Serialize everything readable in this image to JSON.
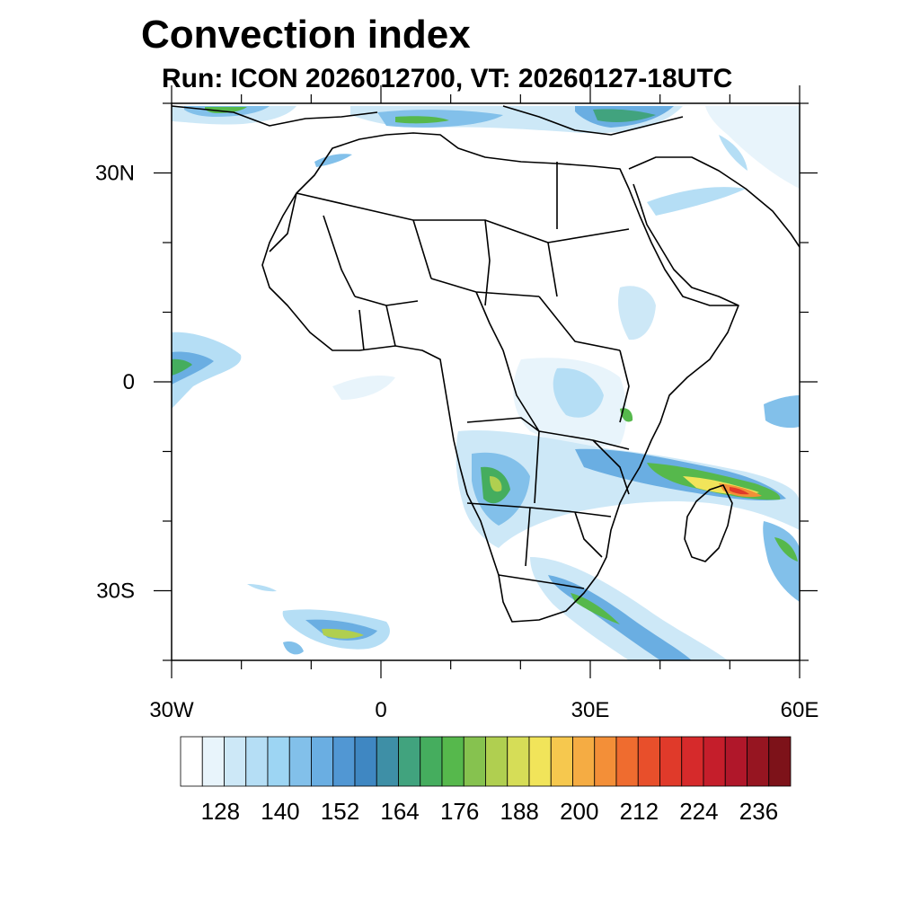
{
  "title": "Convection index",
  "subtitle": "Run: ICON 2026012700,  VT: 20260127-18UTC",
  "map": {
    "lon_range": [
      -30,
      60
    ],
    "lat_range": [
      -40,
      40
    ],
    "lat_labels": [
      {
        "lat": 30,
        "label": "30N"
      },
      {
        "lat": 0,
        "label": "0"
      },
      {
        "lat": -30,
        "label": "30S"
      }
    ],
    "lon_labels": [
      {
        "lon": -30,
        "label": "30W"
      },
      {
        "lon": 0,
        "label": "0"
      },
      {
        "lon": 30,
        "label": "30E"
      },
      {
        "lon": 60,
        "label": "60E"
      }
    ]
  },
  "colorbar": {
    "colors": [
      "#ffffff",
      "#e8f4fb",
      "#cde8f7",
      "#b5def5",
      "#9dd5f3",
      "#82c0ea",
      "#6aaee2",
      "#5197d3",
      "#3f87c2",
      "#3e8fa6",
      "#41a37e",
      "#45ad5e",
      "#56b84c",
      "#86c24f",
      "#b0cf50",
      "#d6dd57",
      "#f1e45a",
      "#f6c84e",
      "#f5ac43",
      "#f38f38",
      "#ef6c2f",
      "#e84f2b",
      "#e03a2a",
      "#d62a2b",
      "#c51e2b",
      "#b0172a",
      "#961521",
      "#7d1219"
    ],
    "tick_labels": [
      {
        "index": 3,
        "label": "128"
      },
      {
        "index": 6,
        "label": "140"
      },
      {
        "index": 9,
        "label": "152"
      },
      {
        "index": 12,
        "label": "164"
      },
      {
        "index": 15,
        "label": "176"
      },
      {
        "index": 18,
        "label": "188"
      },
      {
        "index": 21,
        "label": "200"
      },
      {
        "index": 24,
        "label": "212"
      },
      {
        "index": 27,
        "label": "224"
      },
      {
        "index": 30,
        "label": "236"
      }
    ]
  }
}
